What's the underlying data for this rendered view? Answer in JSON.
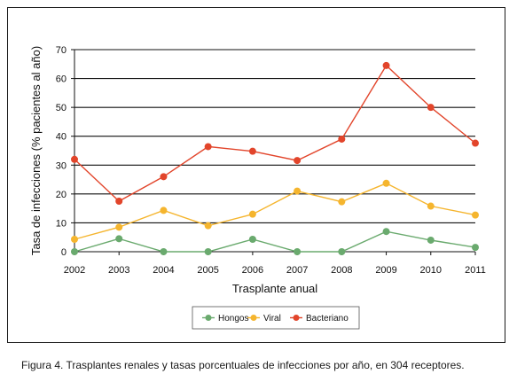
{
  "caption": "Figura 4. Trasplantes renales y tasas porcentuales de infecciones por año, en 304 receptores.",
  "chart_data": {
    "type": "line",
    "title": "",
    "xlabel": "Trasplante anual",
    "ylabel": "Tasa de infecciones (% pacientes al año)",
    "x": [
      "2002",
      "2003",
      "2004",
      "2005",
      "2006",
      "2007",
      "2008",
      "2009",
      "2010",
      "2011"
    ],
    "ylim": [
      0,
      70
    ],
    "yticks": [
      0,
      10,
      20,
      30,
      40,
      50,
      60,
      70
    ],
    "grid": "horizontal",
    "legend_position": "bottom-center",
    "series": [
      {
        "name": "Hongos",
        "color": "#6aaa6e",
        "values": [
          0,
          4.5,
          0,
          0,
          4.3,
          0,
          0,
          7,
          4,
          1.5
        ]
      },
      {
        "name": "Viral",
        "color": "#f5b52e",
        "values": [
          4.3,
          8.5,
          14.3,
          9,
          13,
          21,
          17.3,
          23.7,
          15.8,
          12.7
        ]
      },
      {
        "name": "Bacteriano",
        "color": "#e2452b",
        "values": [
          32,
          17.5,
          26,
          36.4,
          34.8,
          31.6,
          39,
          64.5,
          50,
          37.6
        ]
      }
    ]
  }
}
